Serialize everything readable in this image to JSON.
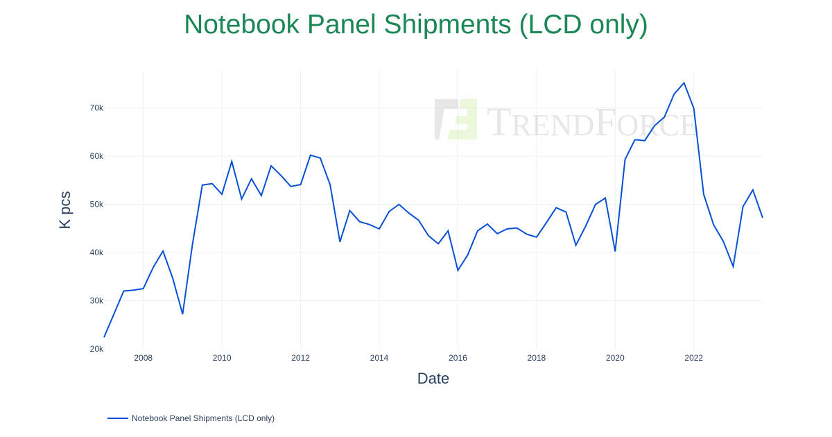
{
  "chart_data": {
    "type": "line",
    "title": "Notebook Panel Shipments (LCD only)",
    "xlabel": "Date",
    "ylabel": "K pcs",
    "x_tick_labels": [
      "2008",
      "2010",
      "2012",
      "2014",
      "2016",
      "2018",
      "2020",
      "2022"
    ],
    "y_tick_labels": [
      "20k",
      "30k",
      "40k",
      "50k",
      "60k",
      "70k"
    ],
    "ylim": [
      20,
      78
    ],
    "xlim": [
      "2007-01",
      "2023-10"
    ],
    "grid": true,
    "legend_position": "bottom-left",
    "watermark": "TrendForce",
    "series": [
      {
        "name": "Notebook Panel Shipments (LCD only)",
        "color": "#0550d4",
        "start": "2007-01",
        "frequency": "quarterly",
        "values": [
          22.4,
          27.2,
          32.0,
          32.2,
          32.5,
          36.9,
          40.3,
          34.6,
          27.2,
          41.7,
          54.0,
          54.3,
          52.1,
          58.9,
          51.1,
          55.3,
          51.8,
          58.0,
          56.0,
          53.7,
          54.1,
          60.2,
          59.6,
          54.1,
          42.2,
          48.7,
          46.4,
          45.8,
          44.9,
          48.5,
          50.0,
          48.2,
          46.7,
          43.5,
          41.8,
          44.5,
          36.3,
          39.5,
          44.5,
          45.9,
          43.9,
          44.9,
          45.1,
          43.8,
          43.2,
          46.2,
          49.3,
          48.4,
          41.5,
          45.5,
          50.0,
          51.3,
          40.2,
          59.3,
          63.4,
          63.2,
          66.3,
          68.1,
          72.9,
          75.2,
          69.9,
          52.1,
          45.8,
          42.3,
          37.1,
          49.5,
          53.0,
          47.2
        ]
      }
    ]
  }
}
